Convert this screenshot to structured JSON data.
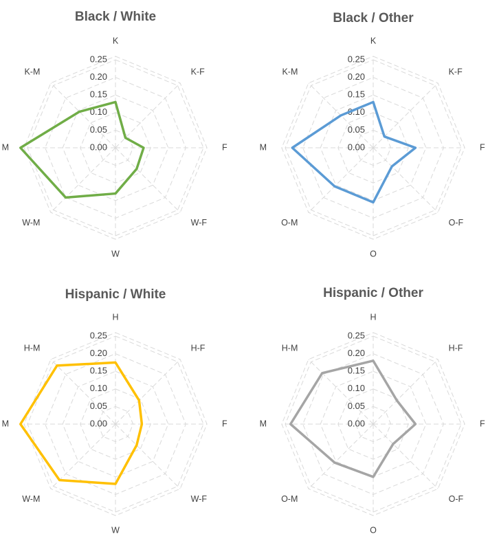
{
  "chart_data": [
    {
      "type": "radar",
      "title": "Black / White",
      "categories": [
        "K",
        "K-F",
        "F",
        "W-F",
        "W",
        "W-M",
        "M",
        "K-M"
      ],
      "ticks": [
        "0.00",
        "0.05",
        "0.10",
        "0.15",
        "0.20",
        "0.25"
      ],
      "rlim": [
        0,
        0.25
      ],
      "grid": true,
      "color": "#70ad47",
      "series": [
        {
          "values": [
            0.13,
            0.04,
            0.08,
            0.085,
            0.13,
            0.2,
            0.27,
            0.145
          ]
        }
      ]
    },
    {
      "type": "radar",
      "title": "Black / Other",
      "categories": [
        "K",
        "K-F",
        "F",
        "O-F",
        "O",
        "O-M",
        "M",
        "K-M"
      ],
      "ticks": [
        "0.00",
        "0.05",
        "0.10",
        "0.15",
        "0.20",
        "0.25"
      ],
      "rlim": [
        0,
        0.25
      ],
      "grid": true,
      "color": "#5b9bd5",
      "series": [
        {
          "values": [
            0.13,
            0.045,
            0.12,
            0.075,
            0.155,
            0.155,
            0.23,
            0.13
          ]
        }
      ]
    },
    {
      "type": "radar",
      "title": "Hispanic / White",
      "categories": [
        "H",
        "H-F",
        "F",
        "W-F",
        "W",
        "W-M",
        "M",
        "H-M"
      ],
      "ticks": [
        "0.00",
        "0.05",
        "0.10",
        "0.15",
        "0.20",
        "0.25"
      ],
      "rlim": [
        0,
        0.25
      ],
      "grid": true,
      "color": "#ffc000",
      "series": [
        {
          "values": [
            0.175,
            0.095,
            0.075,
            0.085,
            0.17,
            0.225,
            0.27,
            0.235
          ]
        }
      ]
    },
    {
      "type": "radar",
      "title": "Hispanic / Other",
      "categories": [
        "H",
        "H-F",
        "F",
        "O-F",
        "O",
        "O-M",
        "M",
        "H-M"
      ],
      "ticks": [
        "0.00",
        "0.05",
        "0.10",
        "0.15",
        "0.20",
        "0.25"
      ],
      "rlim": [
        0,
        0.25
      ],
      "grid": true,
      "color": "#a5a5a5",
      "series": [
        {
          "values": [
            0.18,
            0.095,
            0.12,
            0.08,
            0.15,
            0.155,
            0.235,
            0.205
          ]
        }
      ]
    }
  ]
}
